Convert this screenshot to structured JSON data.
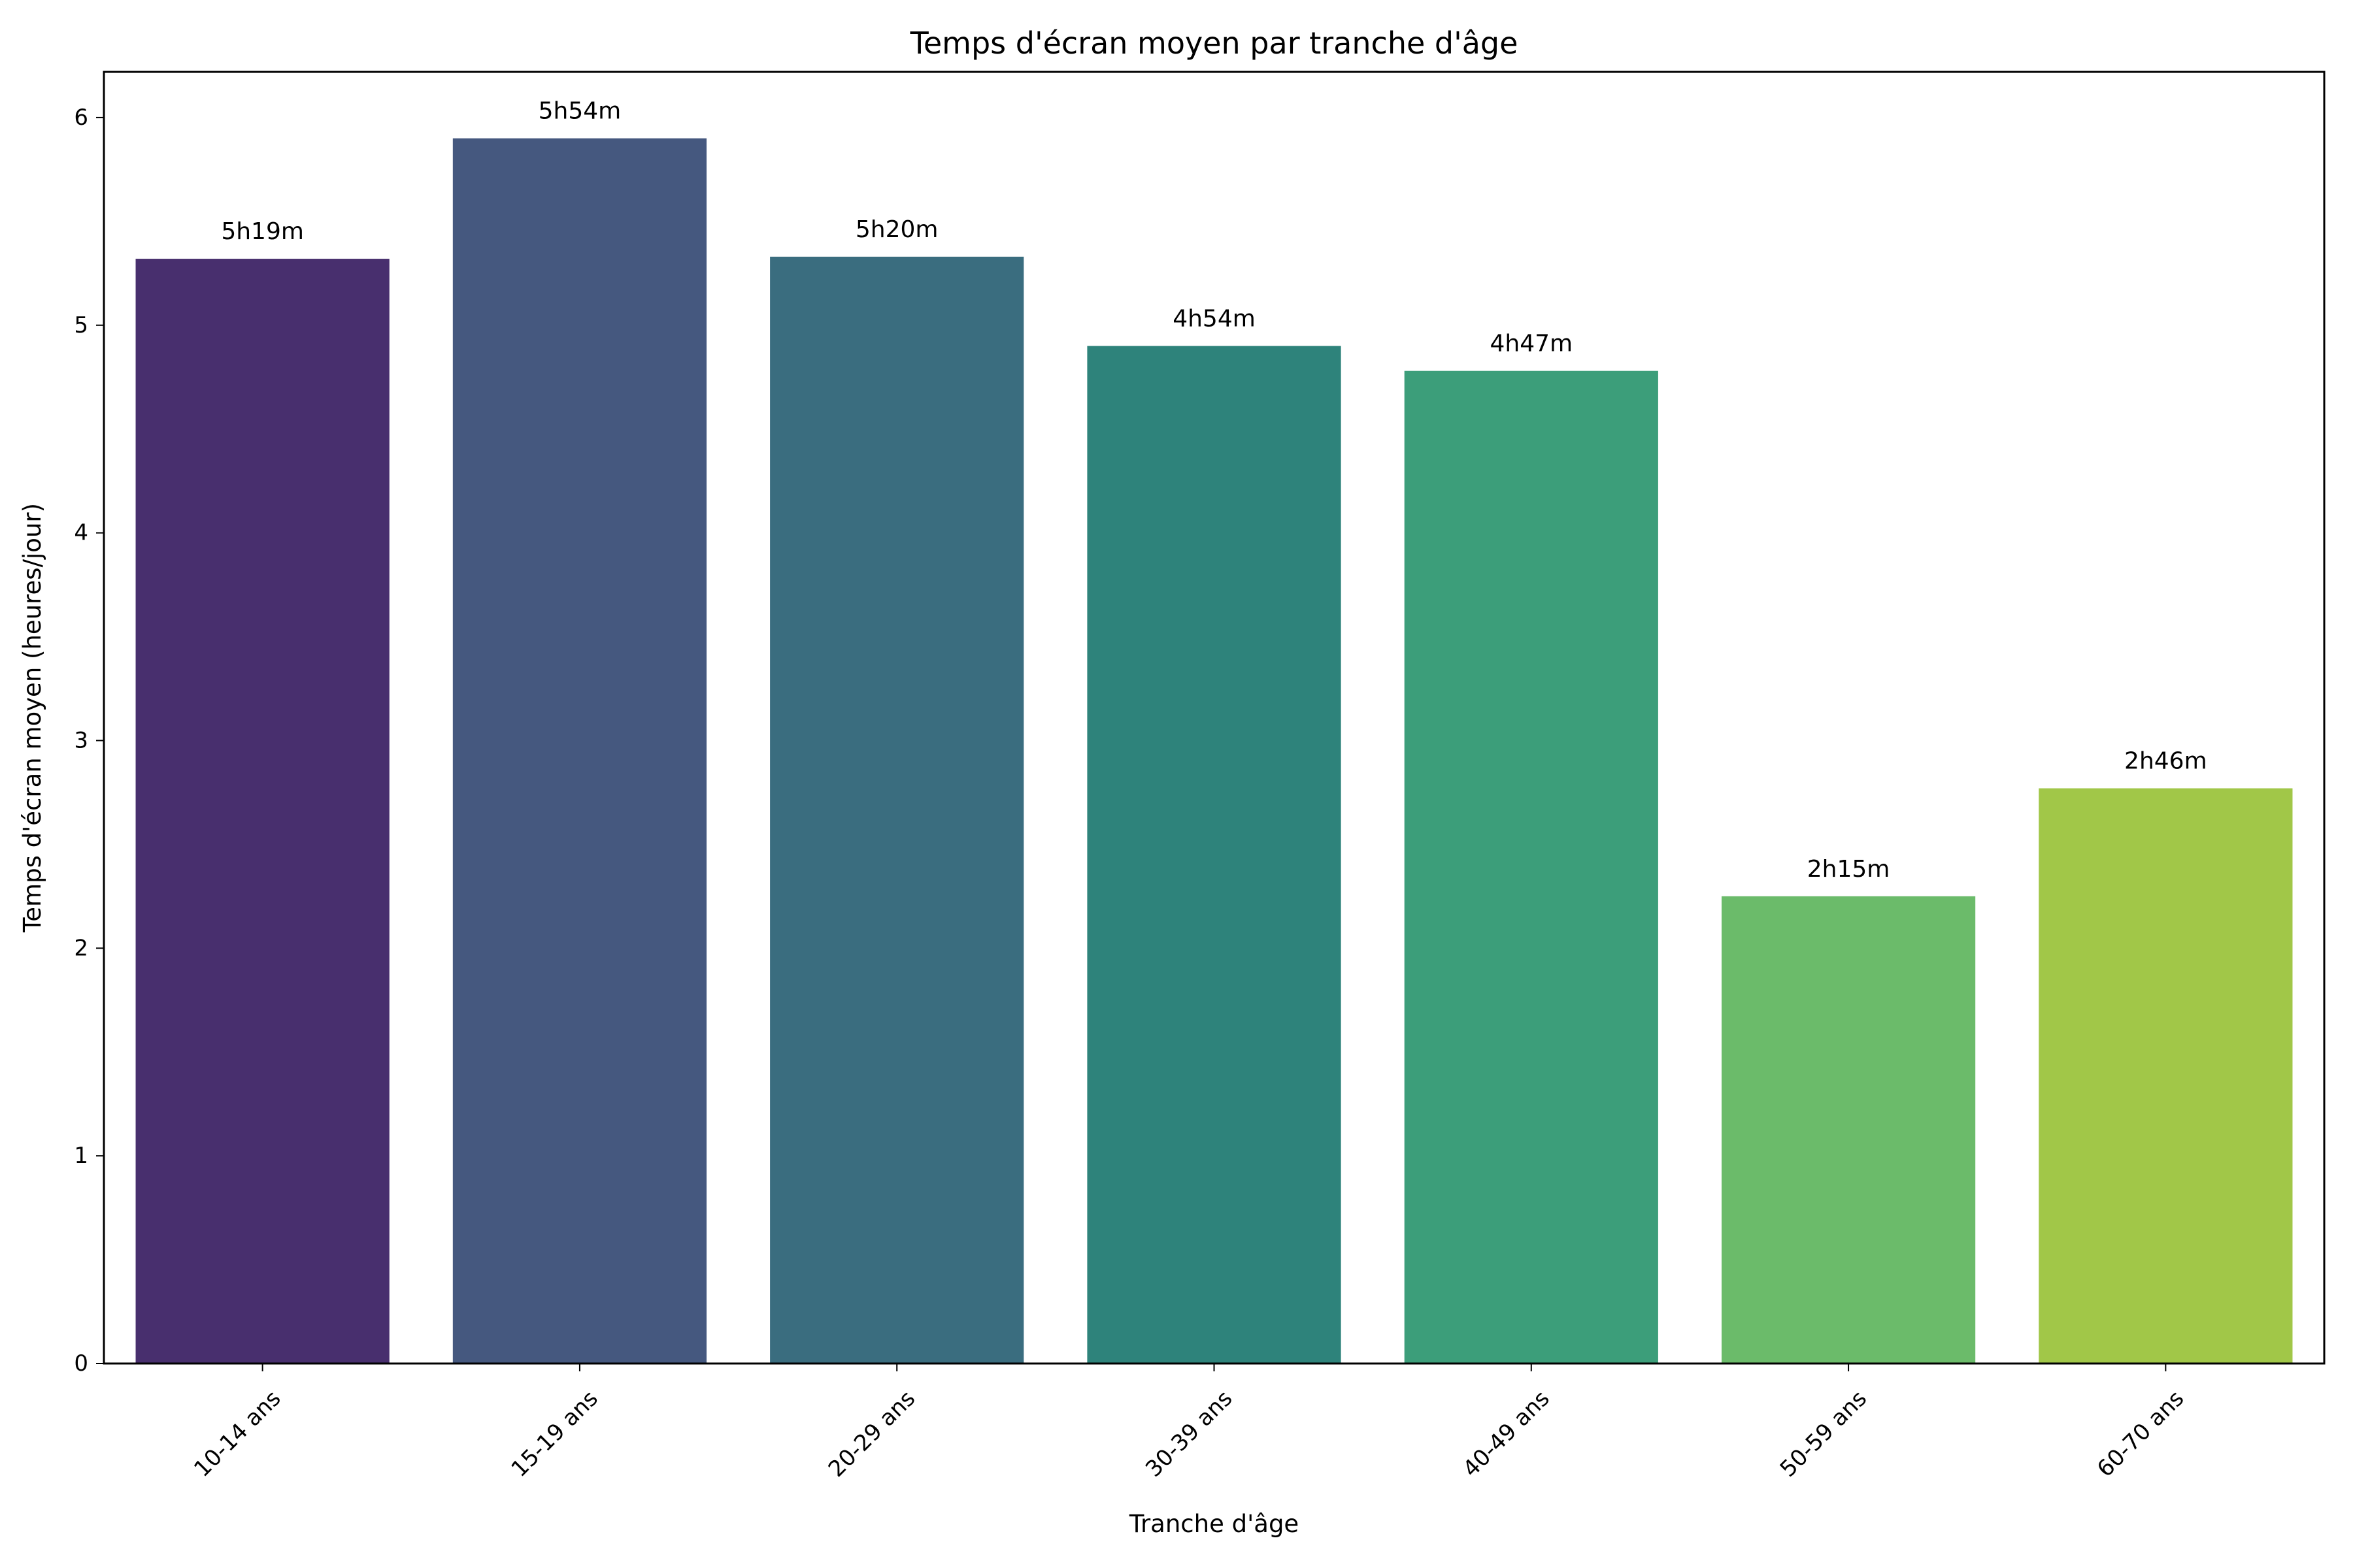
{
  "chart_data": {
    "type": "bar",
    "title": "Temps d'écran moyen par tranche d'âge",
    "xlabel": "Tranche d'âge",
    "ylabel": "Temps d'écran moyen (heures/jour)",
    "categories": [
      "10-14 ans",
      "15-19 ans",
      "20-29 ans",
      "30-39 ans",
      "40-49 ans",
      "50-59 ans",
      "60-70 ans"
    ],
    "values": [
      5.32,
      5.9,
      5.33,
      4.9,
      4.78,
      2.25,
      2.77
    ],
    "data_labels": [
      "5h19m",
      "5h54m",
      "5h20m",
      "4h54m",
      "4h47m",
      "2h15m",
      "2h46m"
    ],
    "colors": [
      "#482f6e",
      "#45587f",
      "#3a6d7f",
      "#2e837b",
      "#3c9e7a",
      "#6bbb6a",
      "#a1c748"
    ],
    "ylim": [
      0,
      6.22
    ],
    "yticks": [
      0,
      1,
      2,
      3,
      4,
      5,
      6
    ],
    "grid": false,
    "legend": false
  }
}
